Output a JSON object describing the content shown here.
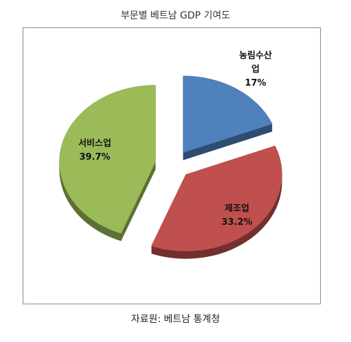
{
  "chart_data": {
    "type": "pie",
    "title": "부문별 베트남 GDP 기여도",
    "categories": [
      "농림수산업",
      "제조업",
      "서비스업"
    ],
    "values": [
      17,
      33.2,
      39.7
    ],
    "value_labels": [
      "17%",
      "33.2%",
      "39.7%"
    ],
    "colors": [
      "#4f81bd",
      "#c0504d",
      "#9bbb59"
    ],
    "source": "자료원: 베트남 통계청"
  }
}
